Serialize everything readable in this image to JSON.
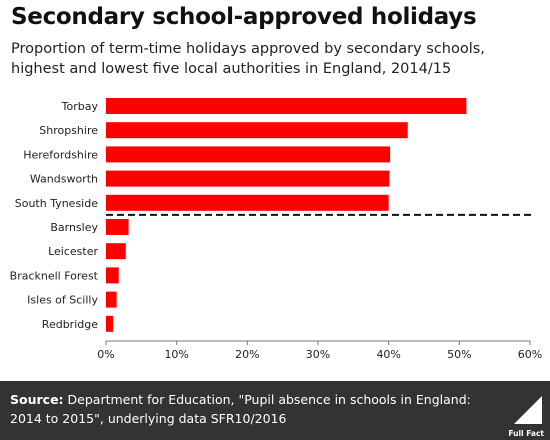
{
  "header": {
    "title": "Secondary school-approved holidays",
    "subtitle": "Proportion of term-time holidays approved by secondary schools, highest and lowest five local authorities in England, 2014/15"
  },
  "chart_data": {
    "type": "bar",
    "orientation": "horizontal",
    "categories": [
      "Torbay",
      "Shropshire",
      "Herefordshire",
      "Wandsworth",
      "South Tyneside",
      "Barnsley",
      "Leicester",
      "Bracknell Forest",
      "Isles of Scilly",
      "Redbridge"
    ],
    "values": [
      51.0,
      42.7,
      40.2,
      40.1,
      40.0,
      3.2,
      2.8,
      1.8,
      1.5,
      1.0
    ],
    "xlim": [
      0,
      60
    ],
    "x_ticks": [
      "0%",
      "10%",
      "20%",
      "30%",
      "40%",
      "50%",
      "60%"
    ],
    "x_tick_values": [
      0,
      10,
      20,
      30,
      40,
      50,
      60
    ],
    "divider_after_index": 4,
    "bar_color": "#ff0000",
    "grid": false
  },
  "footer": {
    "source_label": "Source:",
    "source_text": "Department for Education, \"Pupil absence in schools in England: 2014 to 2015\", underlying data SFR10/2016",
    "logo_text": "Full Fact"
  },
  "colors": {
    "bar": "#ff0000",
    "footer_bg": "#333333"
  }
}
